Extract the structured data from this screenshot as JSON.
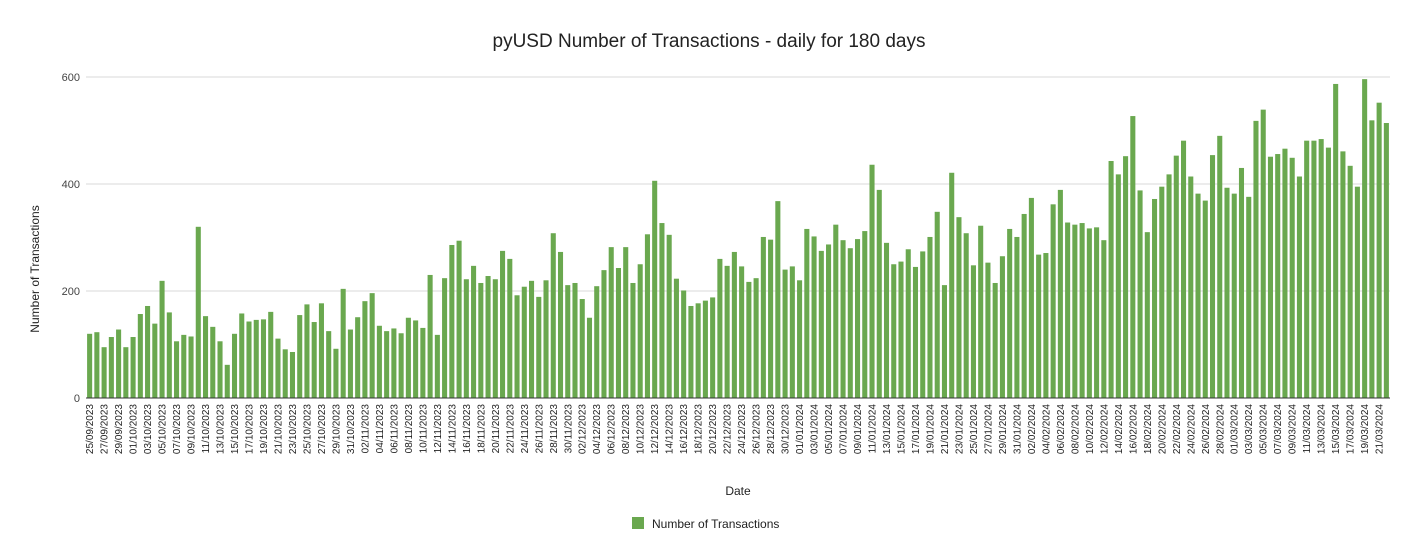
{
  "colors": {
    "series": "#6aa84f",
    "grid": "#d9d9d9",
    "text": "#222222"
  },
  "chart_data": {
    "type": "bar",
    "title": "pyUSD Number of Transactions - daily for 180 days",
    "xlabel": "Date",
    "ylabel": "Number of Transactions",
    "ylim": [
      0,
      600
    ],
    "yticks": [
      0,
      200,
      400,
      600
    ],
    "grid": true,
    "legend_position": "bottom",
    "start_date": "25/09/2023",
    "end_date": "22/03/2024",
    "tick_labels": [
      "25/09/2023",
      "27/09/2023",
      "29/09/2023",
      "01/10/2023",
      "03/10/2023",
      "05/10/2023",
      "07/10/2023",
      "09/10/2023",
      "11/10/2023",
      "13/10/2023",
      "15/10/2023",
      "17/10/2023",
      "19/10/2023",
      "21/10/2023",
      "23/10/2023",
      "25/10/2023",
      "27/10/2023",
      "29/10/2023",
      "31/10/2023",
      "02/11/2023",
      "04/11/2023",
      "06/11/2023",
      "08/11/2023",
      "10/11/2023",
      "12/11/2023",
      "14/11/2023",
      "16/11/2023",
      "18/11/2023",
      "20/11/2023",
      "22/11/2023",
      "24/11/2023",
      "26/11/2023",
      "28/11/2023",
      "30/11/2023",
      "02/12/2023",
      "04/12/2023",
      "06/12/2023",
      "08/12/2023",
      "10/12/2023",
      "12/12/2023",
      "14/12/2023",
      "16/12/2023",
      "18/12/2023",
      "20/12/2023",
      "22/12/2023",
      "24/12/2023",
      "26/12/2023",
      "28/12/2023",
      "30/12/2023",
      "01/01/2024",
      "03/01/2024",
      "05/01/2024",
      "07/01/2024",
      "09/01/2024",
      "11/01/2024",
      "13/01/2024",
      "15/01/2024",
      "17/01/2024",
      "19/01/2024",
      "21/01/2024",
      "23/01/2024",
      "25/01/2024",
      "27/01/2024",
      "29/01/2024",
      "31/01/2024",
      "02/02/2024",
      "04/02/2024",
      "06/02/2024",
      "08/02/2024",
      "10/02/2024",
      "12/02/2024",
      "14/02/2024",
      "16/02/2024",
      "18/02/2024",
      "20/02/2024",
      "22/02/2024",
      "24/02/2024",
      "26/02/2024",
      "28/02/2024",
      "01/03/2024",
      "03/03/2024",
      "05/03/2024",
      "07/03/2024",
      "09/03/2024",
      "11/03/2024",
      "13/03/2024",
      "15/03/2024",
      "17/03/2024",
      "19/03/2024",
      "21/03/2024"
    ],
    "series": [
      {
        "name": "Number of Transactions",
        "values": [
          120,
          123,
          95,
          114,
          128,
          95,
          114,
          157,
          172,
          139,
          219,
          160,
          106,
          118,
          115,
          320,
          153,
          133,
          106,
          62,
          120,
          158,
          143,
          146,
          147,
          161,
          111,
          91,
          86,
          155,
          175,
          142,
          177,
          125,
          92,
          204,
          128,
          151,
          181,
          196,
          135,
          125,
          130,
          121,
          150,
          145,
          131,
          230,
          118,
          224,
          286,
          294,
          222,
          247,
          215,
          228,
          222,
          275,
          260,
          192,
          208,
          219,
          189,
          220,
          308,
          273,
          211,
          215,
          185,
          150,
          209,
          239,
          282,
          243,
          282,
          215,
          250,
          306,
          406,
          327,
          305,
          223,
          201,
          172,
          177,
          182,
          188,
          260,
          247,
          273,
          246,
          217,
          224,
          301,
          296,
          368,
          240,
          246,
          220,
          316,
          302,
          275,
          287,
          324,
          295,
          280,
          297,
          312,
          436,
          389,
          290,
          250,
          255,
          278,
          245,
          274,
          301,
          348,
          211,
          421,
          338,
          308,
          248,
          322,
          253,
          215,
          265,
          316,
          301,
          344,
          374,
          268,
          271,
          362,
          389,
          328,
          324,
          327,
          317,
          319,
          295,
          443,
          418,
          452,
          527,
          388,
          310,
          372,
          395,
          418,
          453,
          481,
          414,
          382,
          369,
          454,
          490,
          393,
          382,
          430,
          376,
          518,
          539,
          451,
          456,
          466,
          449,
          414,
          481,
          481,
          484,
          468,
          587,
          461,
          434,
          395,
          596,
          519,
          552,
          514
        ]
      }
    ]
  }
}
